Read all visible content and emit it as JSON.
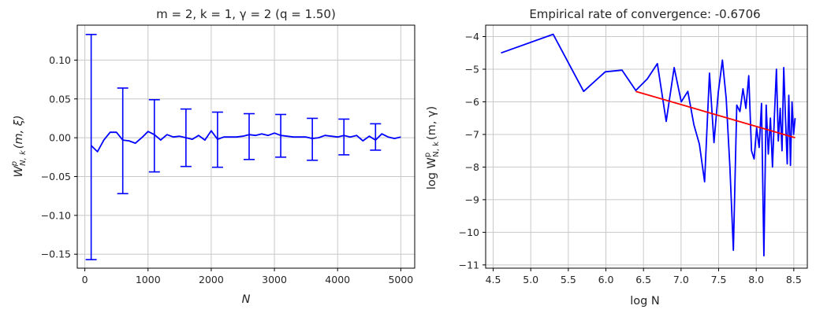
{
  "chart_data": [
    {
      "type": "line",
      "title": "m = 2, k = 1, γ = 2  (q = 1.50)",
      "xlabel": "N",
      "ylabel": "W",
      "ylabel_sup": "p",
      "ylabel_sub": "N, k",
      "ylabel_args": "(m, ξ)",
      "xlim": [
        -120,
        5220
      ],
      "ylim": [
        -0.168,
        0.145
      ],
      "xticks": [
        0,
        1000,
        2000,
        3000,
        4000,
        5000
      ],
      "xtick_labels": [
        "0",
        "1000",
        "2000",
        "3000",
        "4000",
        "5000"
      ],
      "yticks": [
        -0.15,
        -0.1,
        -0.05,
        0.0,
        0.05,
        0.1
      ],
      "ytick_labels": [
        "−0.15",
        "−0.10",
        "−0.05",
        "0.00",
        "0.05",
        "0.10"
      ],
      "grid": true,
      "series": [
        {
          "color": "#0000ff",
          "x": [
            100,
            200,
            300,
            400,
            500,
            600,
            700,
            800,
            900,
            1000,
            1100,
            1200,
            1300,
            1400,
            1500,
            1600,
            1700,
            1800,
            1900,
            2000,
            2100,
            2200,
            2300,
            2400,
            2500,
            2600,
            2700,
            2800,
            2900,
            3000,
            3100,
            3200,
            3300,
            3400,
            3500,
            3600,
            3700,
            3800,
            3900,
            4000,
            4100,
            4200,
            4300,
            4400,
            4500,
            4600,
            4700,
            4800,
            4900,
            5000
          ],
          "y": [
            -0.01,
            -0.018,
            -0.003,
            0.007,
            0.007,
            -0.003,
            -0.004,
            -0.007,
            0.0,
            0.008,
            0.004,
            -0.003,
            0.004,
            0.001,
            0.002,
            0.0,
            -0.002,
            0.003,
            -0.003,
            0.009,
            -0.002,
            0.001,
            0.001,
            0.001,
            0.002,
            0.004,
            0.003,
            0.005,
            0.003,
            0.006,
            0.003,
            0.002,
            0.001,
            0.001,
            0.001,
            -0.001,
            0.0,
            0.003,
            0.002,
            0.001,
            0.003,
            0.001,
            0.003,
            -0.004,
            0.002,
            -0.003,
            0.005,
            0.001,
            -0.001,
            0.001
          ]
        }
      ],
      "error_bars": [
        {
          "x": 100,
          "low": -0.157,
          "high": 0.133
        },
        {
          "x": 600,
          "low": -0.072,
          "high": 0.064
        },
        {
          "x": 1100,
          "low": -0.044,
          "high": 0.049
        },
        {
          "x": 1600,
          "low": -0.037,
          "high": 0.037
        },
        {
          "x": 2100,
          "low": -0.038,
          "high": 0.033
        },
        {
          "x": 2600,
          "low": -0.028,
          "high": 0.031
        },
        {
          "x": 3100,
          "low": -0.025,
          "high": 0.03
        },
        {
          "x": 3600,
          "low": -0.029,
          "high": 0.025
        },
        {
          "x": 4100,
          "low": -0.022,
          "high": 0.024
        },
        {
          "x": 4600,
          "low": -0.016,
          "high": 0.018
        }
      ]
    },
    {
      "type": "line",
      "title": "Empirical rate of convergence: -0.6706",
      "xlabel": "log N",
      "ylabel": "log W",
      "ylabel_sup": "p",
      "ylabel_sub": "N, k",
      "ylabel_args": "(m, γ)",
      "xlim": [
        4.4,
        8.68
      ],
      "ylim": [
        -11.1,
        -3.65
      ],
      "xticks": [
        4.5,
        5.0,
        5.5,
        6.0,
        6.5,
        7.0,
        7.5,
        8.0,
        8.5
      ],
      "xtick_labels": [
        "4.5",
        "5.0",
        "5.5",
        "6.0",
        "6.5",
        "7.0",
        "7.5",
        "8.0",
        "8.5"
      ],
      "yticks": [
        -11,
        -10,
        -9,
        -8,
        -7,
        -6,
        -5,
        -4
      ],
      "ytick_labels": [
        "−11",
        "−10",
        "−9",
        "−8",
        "−7",
        "−6",
        "−5",
        "−4"
      ],
      "grid": true,
      "series": [
        {
          "color": "#0000ff",
          "x": [
            4.605,
            5.298,
            5.704,
            5.991,
            6.215,
            6.397,
            6.551,
            6.685,
            6.802,
            6.908,
            7.003,
            7.09,
            7.17,
            7.244,
            7.313,
            7.378,
            7.438,
            7.496,
            7.55,
            7.601,
            7.65,
            7.696,
            7.741,
            7.783,
            7.824,
            7.863,
            7.901,
            7.937,
            7.972,
            8.006,
            8.039,
            8.071,
            8.102,
            8.132,
            8.161,
            8.189,
            8.216,
            8.243,
            8.269,
            8.294,
            8.319,
            8.343,
            8.366,
            8.389,
            8.412,
            8.434,
            8.455,
            8.476,
            8.497,
            8.517
          ],
          "y": [
            -4.5,
            -3.93,
            -5.68,
            -5.08,
            -5.03,
            -5.65,
            -5.3,
            -4.83,
            -6.6,
            -4.95,
            -6.0,
            -5.68,
            -6.7,
            -7.3,
            -8.45,
            -5.12,
            -7.25,
            -5.7,
            -4.72,
            -5.9,
            -8.0,
            -10.55,
            -6.1,
            -6.3,
            -5.6,
            -6.2,
            -5.2,
            -7.5,
            -7.75,
            -6.8,
            -7.4,
            -6.05,
            -10.72,
            -6.1,
            -7.6,
            -6.5,
            -8.0,
            -6.4,
            -5.0,
            -7.2,
            -6.2,
            -7.5,
            -4.95,
            -6.5,
            -7.9,
            -5.8,
            -7.95,
            -6.0,
            -7.0,
            -6.5
          ]
        },
        {
          "color": "#ff0000",
          "x": [
            6.397,
            8.517
          ],
          "y": [
            -5.68,
            -7.1
          ]
        }
      ]
    }
  ]
}
